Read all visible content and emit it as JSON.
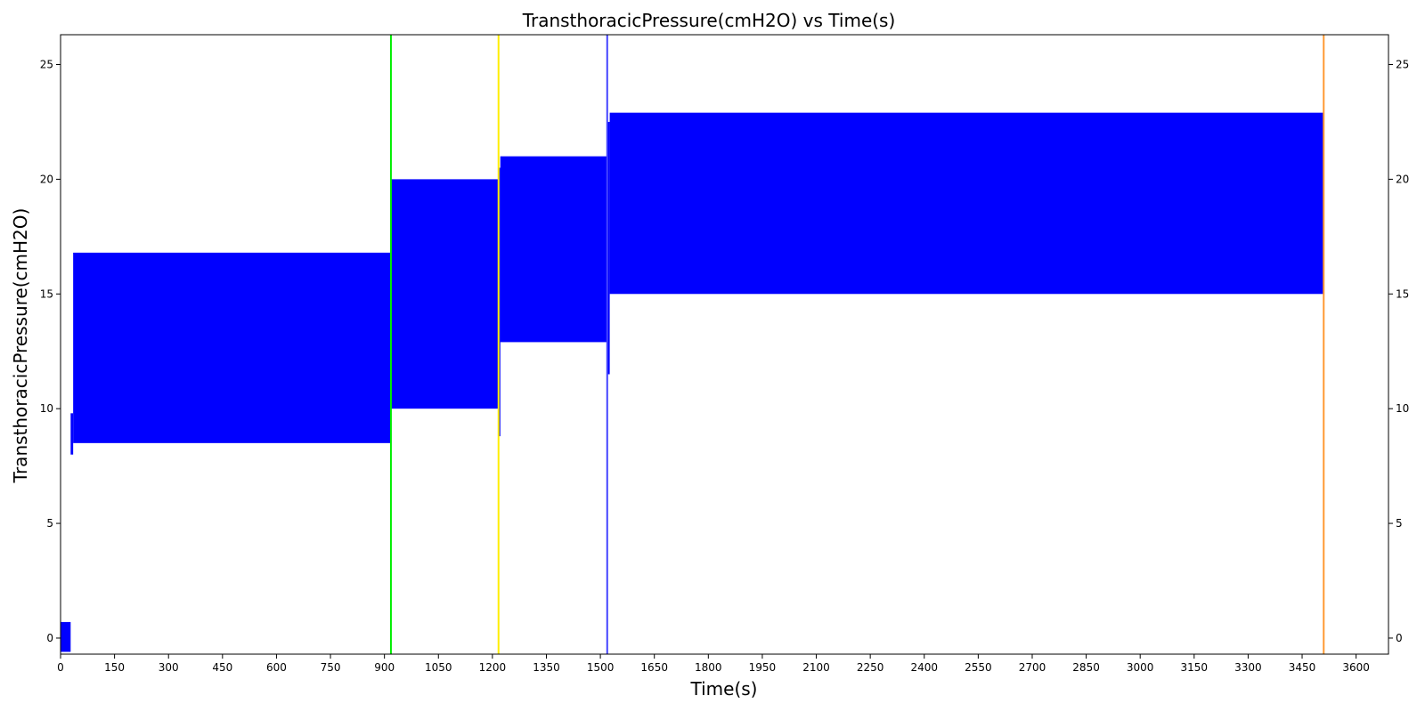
{
  "chart_data": {
    "type": "area",
    "title": "TransthoracicPressure(cmH2O) vs Time(s)",
    "xlabel": "Time(s)",
    "ylabel": "TransthoracicPressure(cmH2O)",
    "xlim": [
      0,
      3690
    ],
    "ylim": [
      -0.7,
      26.3
    ],
    "x_ticks": [
      0,
      150,
      300,
      450,
      600,
      750,
      900,
      1050,
      1200,
      1350,
      1500,
      1650,
      1800,
      1950,
      2100,
      2250,
      2400,
      2550,
      2700,
      2850,
      3000,
      3150,
      3300,
      3450,
      3600
    ],
    "y_ticks": [
      0,
      5,
      10,
      15,
      20,
      25
    ],
    "grid": false,
    "right_axis_ticks": true,
    "series": [
      {
        "color": "#0000ff",
        "description_bands": [
          {
            "x_start": 0,
            "x_end": 28,
            "min": -0.6,
            "max": 0.7
          },
          {
            "x_start": 28,
            "x_end": 35,
            "min": 8.0,
            "max": 9.8
          },
          {
            "x_start": 35,
            "x_end": 918,
            "min": 8.5,
            "max": 16.8
          },
          {
            "x_start": 918,
            "x_end": 1217,
            "min": 10.0,
            "max": 20.0
          },
          {
            "x_start": 1217,
            "x_end": 1222,
            "min": 8.8,
            "max": 20.5
          },
          {
            "x_start": 1222,
            "x_end": 1519,
            "min": 12.9,
            "max": 21.0
          },
          {
            "x_start": 1519,
            "x_end": 1526,
            "min": 11.5,
            "max": 22.5
          },
          {
            "x_start": 1526,
            "x_end": 3510,
            "min": 15.0,
            "max": 22.9
          }
        ]
      }
    ],
    "vertical_lines": [
      {
        "x": 918,
        "color": "#00ee00"
      },
      {
        "x": 1217,
        "color": "#ffee00"
      },
      {
        "x": 1519,
        "color": "#4444ff"
      },
      {
        "x": 3510,
        "color": "#ff9933"
      }
    ]
  }
}
